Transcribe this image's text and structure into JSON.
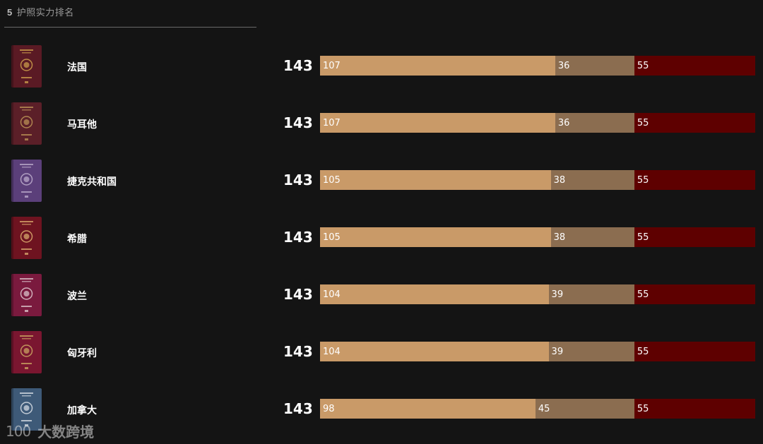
{
  "header": {
    "rank": "5",
    "title": "护照实力排名"
  },
  "colors": {
    "visa_free": "#c99a68",
    "visa_on_arrival": "#8b6d50",
    "visa_required": "#5e0000",
    "background": "#141414"
  },
  "rows": [
    {
      "country": "法国",
      "total": "143",
      "visa_free": 107,
      "visa_on_arrival": 36,
      "visa_required": 55,
      "passport_color": "#5a1a24",
      "emblem_color": "#c89a4a",
      "icon": "passport-france-icon"
    },
    {
      "country": "马耳他",
      "total": "143",
      "visa_free": 107,
      "visa_on_arrival": 36,
      "visa_required": 55,
      "passport_color": "#5b1f28",
      "emblem_color": "#b88f54",
      "icon": "passport-malta-icon"
    },
    {
      "country": "捷克共和国",
      "total": "143",
      "visa_free": 105,
      "visa_on_arrival": 38,
      "visa_required": 55,
      "passport_color": "#5b3f7a",
      "emblem_color": "#b9a9c9",
      "icon": "passport-czech-icon"
    },
    {
      "country": "希腊",
      "total": "143",
      "visa_free": 105,
      "visa_on_arrival": 38,
      "visa_required": 55,
      "passport_color": "#6e1320",
      "emblem_color": "#d6a56a",
      "icon": "passport-greece-icon"
    },
    {
      "country": "波兰",
      "total": "143",
      "visa_free": 104,
      "visa_on_arrival": 39,
      "visa_required": 55,
      "passport_color": "#7a1a3e",
      "emblem_color": "#d9c0c8",
      "icon": "passport-poland-icon"
    },
    {
      "country": "匈牙利",
      "total": "143",
      "visa_free": 104,
      "visa_on_arrival": 39,
      "visa_required": 55,
      "passport_color": "#7a1630",
      "emblem_color": "#c9a260",
      "icon": "passport-hungary-icon"
    },
    {
      "country": "加拿大",
      "total": "143",
      "visa_free": 98,
      "visa_on_arrival": 45,
      "visa_required": 55,
      "passport_color": "#3e5a78",
      "emblem_color": "#d2d8e0",
      "icon": "passport-canada-icon"
    }
  ],
  "watermark": {
    "logo": "100",
    "text": "大数跨境"
  }
}
